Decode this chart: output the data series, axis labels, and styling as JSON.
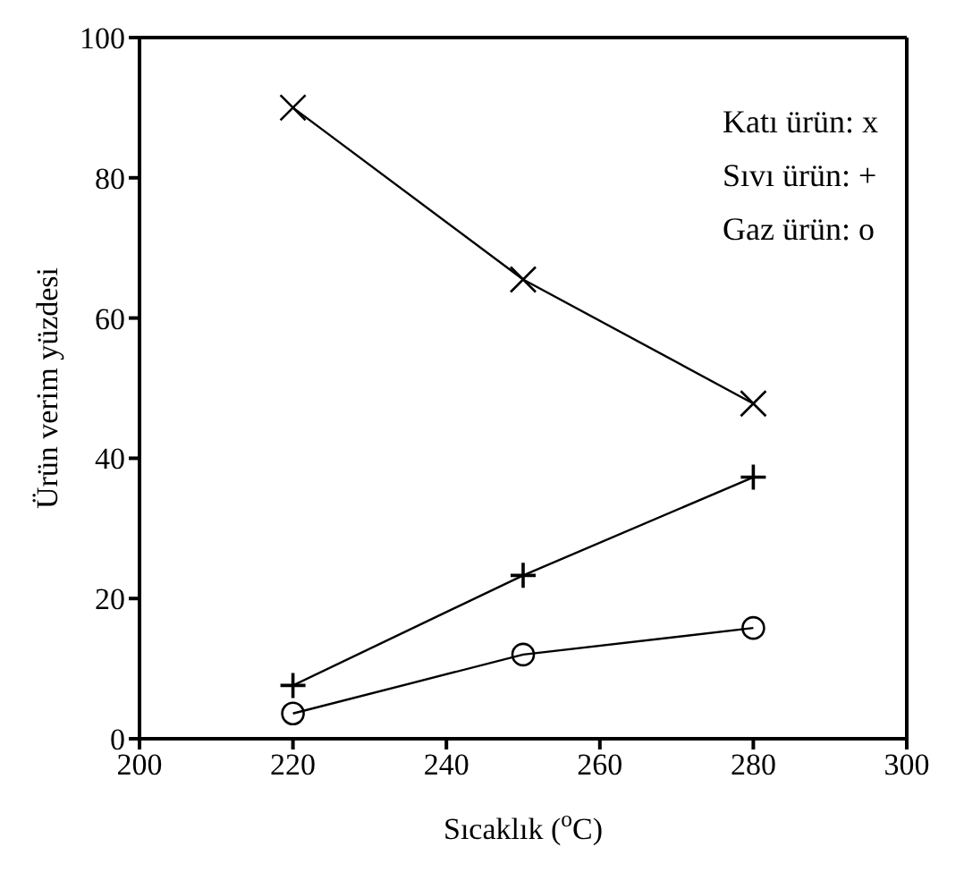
{
  "chart_data": {
    "type": "line",
    "xlabel": "Sıcaklık ($^{o}$C)",
    "ylabel": "Ürün verim yüzdesi",
    "x": [
      220,
      250,
      280
    ],
    "series": [
      {
        "name": "Katı ürün: x",
        "color": "#000000",
        "marker": "x",
        "values": [
          90,
          65.5,
          47.8
        ]
      },
      {
        "name": "Sıvı ürün: +",
        "color": "#000000",
        "marker": "cross",
        "values": [
          7.6,
          23.3,
          37.3
        ]
      },
      {
        "name": "Gaz ürün: o",
        "color": "#000000",
        "marker": "circle",
        "values": [
          3.6,
          12,
          15.8
        ]
      }
    ],
    "xlim": [
      200,
      300
    ],
    "xticks": [
      200,
      220,
      240,
      260,
      280,
      300
    ],
    "ylim": [
      0,
      100
    ],
    "yticks": [
      0,
      20,
      40,
      60,
      80,
      100
    ],
    "legend": "top right",
    "line_style": "solid",
    "grid": false
  }
}
